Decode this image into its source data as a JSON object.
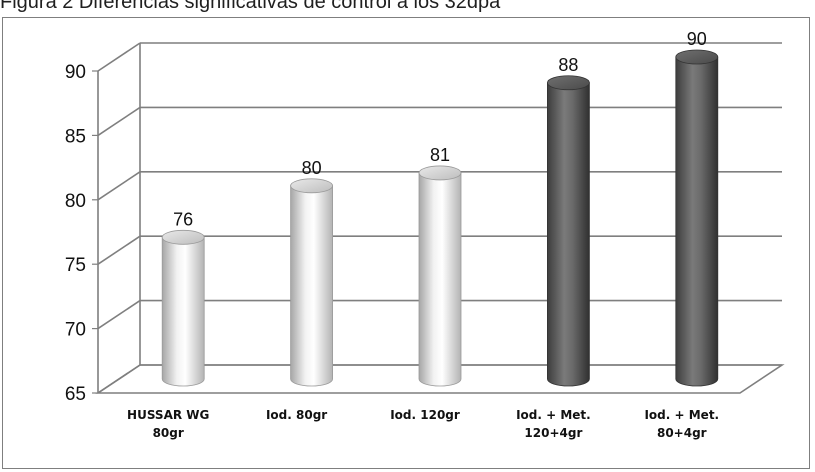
{
  "caption": "Figura 2  Diferencias significativas de control a los 32dpa",
  "chart_data": {
    "type": "bar",
    "categories": [
      [
        "HUSSAR WG",
        "80gr"
      ],
      [
        "Iod. 80gr"
      ],
      [
        "Iod. 120gr"
      ],
      [
        "Iod. + Met.",
        "120+4gr"
      ],
      [
        "Iod. + Met.",
        "80+4gr"
      ]
    ],
    "values": [
      76,
      80,
      81,
      88,
      90
    ],
    "data_labels": [
      "76",
      "80",
      "81",
      "88",
      "90"
    ],
    "yticks": [
      65,
      70,
      75,
      80,
      85,
      90
    ],
    "ylim": [
      65,
      90
    ],
    "grid": true,
    "style": "3d-cylinder",
    "colors": [
      "#d9d9d9",
      "#d9d9d9",
      "#d9d9d9",
      "#555555",
      "#555555"
    ]
  }
}
